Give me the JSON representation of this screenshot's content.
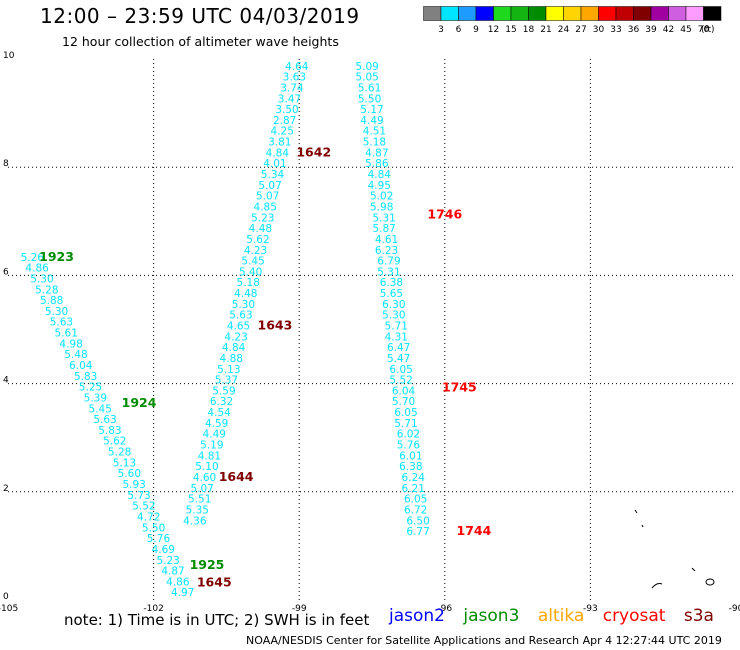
{
  "header": {
    "title": "12:00 – 23:59 UTC 04/03/2019",
    "subtitle": "12 hour collection of altimeter wave heights"
  },
  "colorbar": {
    "bins": [
      {
        "color": "#808080",
        "label": "3"
      },
      {
        "color": "#00e5ff",
        "label": "6"
      },
      {
        "color": "#1e9bff",
        "label": "9"
      },
      {
        "color": "#0000ff",
        "label": "12"
      },
      {
        "color": "#1ed81e",
        "label": "15"
      },
      {
        "color": "#13b513",
        "label": "18"
      },
      {
        "color": "#008c00",
        "label": "21"
      },
      {
        "color": "#ffff00",
        "label": "24"
      },
      {
        "color": "#ffd400",
        "label": "27"
      },
      {
        "color": "#ffa600",
        "label": "30"
      },
      {
        "color": "#ff0000",
        "label": "33"
      },
      {
        "color": "#c00000",
        "label": "36"
      },
      {
        "color": "#800000",
        "label": "39"
      },
      {
        "color": "#9f009f",
        "label": "42"
      },
      {
        "color": "#d05ee0",
        "label": "45"
      },
      {
        "color": "#ff9cff",
        "label": "70"
      },
      {
        "color": "#000000",
        "label": ""
      }
    ],
    "unit": "(ft)"
  },
  "note": "note: 1) Time is in UTC; 2) SWH is in feet",
  "legend": [
    {
      "name": "jason2",
      "color": "#0000ff"
    },
    {
      "name": "jason3",
      "color": "#008c00"
    },
    {
      "name": "altika",
      "color": "#ffa600"
    },
    {
      "name": "cryosat",
      "color": "#ff0000"
    },
    {
      "name": "s3a",
      "color": "#800000"
    }
  ],
  "footer": "NOAA/NESDIS Center for Satellite Applications and Research    Apr  4 12:27:44 UTC 2019",
  "chart_data": {
    "type": "scatter",
    "xlim": [
      -105,
      -90
    ],
    "ylim": [
      0,
      10
    ],
    "xticks": [
      "-105",
      "-102",
      "-99",
      "-96",
      "-93",
      "-90"
    ],
    "yticks": [
      "0",
      "2",
      "4",
      "6",
      "8",
      "10"
    ],
    "grid": true,
    "value_color": "#00e5ff",
    "tracks": [
      {
        "points": [
          {
            "x": -104.5,
            "y": 6.27,
            "v": "5.26"
          },
          {
            "x": -104.4,
            "y": 6.07,
            "v": "4.86"
          },
          {
            "x": -104.3,
            "y": 5.87,
            "v": "5.30"
          },
          {
            "x": -104.2,
            "y": 5.67,
            "v": "5.28"
          },
          {
            "x": -104.1,
            "y": 5.47,
            "v": "5.88"
          },
          {
            "x": -104.0,
            "y": 5.27,
            "v": "5.30"
          },
          {
            "x": -103.9,
            "y": 5.07,
            "v": "5.63"
          },
          {
            "x": -103.8,
            "y": 4.87,
            "v": "5.61"
          },
          {
            "x": -103.7,
            "y": 4.67,
            "v": "4.98"
          },
          {
            "x": -103.6,
            "y": 4.47,
            "v": "5.48"
          },
          {
            "x": -103.5,
            "y": 4.27,
            "v": "6.04"
          },
          {
            "x": -103.4,
            "y": 4.07,
            "v": "5.83"
          },
          {
            "x": -103.3,
            "y": 3.87,
            "v": "5.25"
          },
          {
            "x": -103.2,
            "y": 3.67,
            "v": "5.39"
          },
          {
            "x": -103.1,
            "y": 3.47,
            "v": "5.45"
          },
          {
            "x": -103.0,
            "y": 3.27,
            "v": "5.63"
          },
          {
            "x": -102.9,
            "y": 3.07,
            "v": "5.83"
          },
          {
            "x": -102.8,
            "y": 2.87,
            "v": "5.62"
          },
          {
            "x": -102.7,
            "y": 2.67,
            "v": "5.28"
          },
          {
            "x": -102.6,
            "y": 2.47,
            "v": "5.13"
          },
          {
            "x": -102.5,
            "y": 2.27,
            "v": "5.60"
          },
          {
            "x": -102.4,
            "y": 2.07,
            "v": "5.93"
          },
          {
            "x": -102.3,
            "y": 1.87,
            "v": "5.73"
          },
          {
            "x": -102.2,
            "y": 1.67,
            "v": "5.52"
          },
          {
            "x": -102.1,
            "y": 1.47,
            "v": "4.72"
          },
          {
            "x": -102.0,
            "y": 1.27,
            "v": "5.50"
          },
          {
            "x": -101.9,
            "y": 1.07,
            "v": "5.76"
          },
          {
            "x": -101.8,
            "y": 0.87,
            "v": "4.69"
          },
          {
            "x": -101.7,
            "y": 0.67,
            "v": "5.23"
          },
          {
            "x": -101.6,
            "y": 0.47,
            "v": "4.87"
          },
          {
            "x": -101.5,
            "y": 0.27,
            "v": "4.86"
          },
          {
            "x": -101.4,
            "y": 0.07,
            "v": "4.97"
          }
        ],
        "labels": [
          {
            "x": -104.0,
            "y": 6.27,
            "t": "1923",
            "color": "#008c00"
          },
          {
            "x": -102.3,
            "y": 3.57,
            "t": "1924",
            "color": "#008c00"
          },
          {
            "x": -100.9,
            "y": 0.57,
            "t": "1925",
            "color": "#008c00"
          }
        ]
      },
      {
        "points": [
          {
            "x": -99.05,
            "y": 9.8,
            "v": "4.64"
          },
          {
            "x": -99.1,
            "y": 9.6,
            "v": "3.63"
          },
          {
            "x": -99.15,
            "y": 9.4,
            "v": "3.74"
          },
          {
            "x": -99.2,
            "y": 9.2,
            "v": "3.47"
          },
          {
            "x": -99.25,
            "y": 9.0,
            "v": "3.50"
          },
          {
            "x": -99.3,
            "y": 8.8,
            "v": "2.87"
          },
          {
            "x": -99.35,
            "y": 8.6,
            "v": "4.25"
          },
          {
            "x": -99.4,
            "y": 8.4,
            "v": "3.81"
          },
          {
            "x": -99.45,
            "y": 8.2,
            "v": "4.84"
          },
          {
            "x": -99.5,
            "y": 8.0,
            "v": "4.01"
          },
          {
            "x": -99.55,
            "y": 7.8,
            "v": "5.34"
          },
          {
            "x": -99.6,
            "y": 7.6,
            "v": "5.07"
          },
          {
            "x": -99.65,
            "y": 7.4,
            "v": "5.07"
          },
          {
            "x": -99.7,
            "y": 7.2,
            "v": "4.85"
          },
          {
            "x": -99.75,
            "y": 7.0,
            "v": "5.23"
          },
          {
            "x": -99.8,
            "y": 6.8,
            "v": "4.48"
          },
          {
            "x": -99.85,
            "y": 6.6,
            "v": "5.62"
          },
          {
            "x": -99.9,
            "y": 6.4,
            "v": "4.23"
          },
          {
            "x": -99.95,
            "y": 6.2,
            "v": "5.45"
          },
          {
            "x": -100.0,
            "y": 6.0,
            "v": "5.40"
          },
          {
            "x": -100.05,
            "y": 5.8,
            "v": "5.18"
          },
          {
            "x": -100.1,
            "y": 5.6,
            "v": "4.48"
          },
          {
            "x": -100.15,
            "y": 5.4,
            "v": "5.30"
          },
          {
            "x": -100.2,
            "y": 5.2,
            "v": "5.63"
          },
          {
            "x": -100.25,
            "y": 5.0,
            "v": "4.65"
          },
          {
            "x": -100.3,
            "y": 4.8,
            "v": "4.23"
          },
          {
            "x": -100.35,
            "y": 4.6,
            "v": "4.84"
          },
          {
            "x": -100.4,
            "y": 4.4,
            "v": "4.88"
          },
          {
            "x": -100.45,
            "y": 4.2,
            "v": "5.13"
          },
          {
            "x": -100.5,
            "y": 4.0,
            "v": "5.37"
          },
          {
            "x": -100.55,
            "y": 3.8,
            "v": "5.59"
          },
          {
            "x": -100.6,
            "y": 3.6,
            "v": "6.32"
          },
          {
            "x": -100.65,
            "y": 3.4,
            "v": "4.54"
          },
          {
            "x": -100.7,
            "y": 3.2,
            "v": "4.59"
          },
          {
            "x": -100.75,
            "y": 3.0,
            "v": "4.49"
          },
          {
            "x": -100.8,
            "y": 2.8,
            "v": "5.19"
          },
          {
            "x": -100.85,
            "y": 2.6,
            "v": "4.81"
          },
          {
            "x": -100.9,
            "y": 2.4,
            "v": "5.10"
          },
          {
            "x": -100.95,
            "y": 2.2,
            "v": "4.60"
          },
          {
            "x": -101.0,
            "y": 2.0,
            "v": "5.07"
          },
          {
            "x": -101.05,
            "y": 1.8,
            "v": "5.51"
          },
          {
            "x": -101.1,
            "y": 1.6,
            "v": "5.35"
          },
          {
            "x": -101.15,
            "y": 1.4,
            "v": "4.36"
          }
        ],
        "labels": [
          {
            "x": -98.7,
            "y": 8.2,
            "t": "1642",
            "color": "#800000"
          },
          {
            "x": -99.5,
            "y": 5.0,
            "t": "1643",
            "color": "#800000"
          },
          {
            "x": -100.3,
            "y": 2.2,
            "t": "1644",
            "color": "#800000"
          },
          {
            "x": -100.75,
            "y": 0.25,
            "t": "1645",
            "color": "#800000"
          }
        ]
      },
      {
        "points": [
          {
            "x": -97.6,
            "y": 9.8,
            "v": "5.09"
          },
          {
            "x": -97.6,
            "y": 9.6,
            "v": "5.05"
          },
          {
            "x": -97.55,
            "y": 9.4,
            "v": "5.61"
          },
          {
            "x": -97.55,
            "y": 9.2,
            "v": "5.50"
          },
          {
            "x": -97.5,
            "y": 9.0,
            "v": "5.17"
          },
          {
            "x": -97.5,
            "y": 8.8,
            "v": "4.49"
          },
          {
            "x": -97.45,
            "y": 8.6,
            "v": "4.51"
          },
          {
            "x": -97.45,
            "y": 8.4,
            "v": "5.18"
          },
          {
            "x": -97.4,
            "y": 8.2,
            "v": "4.87"
          },
          {
            "x": -97.4,
            "y": 8.0,
            "v": "5.86"
          },
          {
            "x": -97.35,
            "y": 7.8,
            "v": "4.84"
          },
          {
            "x": -97.35,
            "y": 7.6,
            "v": "4.95"
          },
          {
            "x": -97.3,
            "y": 7.4,
            "v": "5.02"
          },
          {
            "x": -97.3,
            "y": 7.2,
            "v": "5.98"
          },
          {
            "x": -97.25,
            "y": 7.0,
            "v": "5.31"
          },
          {
            "x": -97.25,
            "y": 6.8,
            "v": "5.87"
          },
          {
            "x": -97.2,
            "y": 6.6,
            "v": "4.61"
          },
          {
            "x": -97.2,
            "y": 6.4,
            "v": "6.23"
          },
          {
            "x": -97.15,
            "y": 6.2,
            "v": "6.79"
          },
          {
            "x": -97.15,
            "y": 6.0,
            "v": "5.31"
          },
          {
            "x": -97.1,
            "y": 5.8,
            "v": "6.38"
          },
          {
            "x": -97.1,
            "y": 5.6,
            "v": "5.65"
          },
          {
            "x": -97.05,
            "y": 5.4,
            "v": "6.30"
          },
          {
            "x": -97.05,
            "y": 5.2,
            "v": "5.30"
          },
          {
            "x": -97.0,
            "y": 5.0,
            "v": "5.71"
          },
          {
            "x": -97.0,
            "y": 4.8,
            "v": "4.31"
          },
          {
            "x": -96.95,
            "y": 4.6,
            "v": "6.47"
          },
          {
            "x": -96.95,
            "y": 4.4,
            "v": "5.47"
          },
          {
            "x": -96.9,
            "y": 4.2,
            "v": "6.05"
          },
          {
            "x": -96.9,
            "y": 4.0,
            "v": "5.52"
          },
          {
            "x": -96.85,
            "y": 3.8,
            "v": "6.04"
          },
          {
            "x": -96.85,
            "y": 3.6,
            "v": "5.70"
          },
          {
            "x": -96.8,
            "y": 3.4,
            "v": "6.05"
          },
          {
            "x": -96.8,
            "y": 3.2,
            "v": "5.71"
          },
          {
            "x": -96.75,
            "y": 3.0,
            "v": "6.02"
          },
          {
            "x": -96.75,
            "y": 2.8,
            "v": "5.76"
          },
          {
            "x": -96.7,
            "y": 2.6,
            "v": "6.01"
          },
          {
            "x": -96.7,
            "y": 2.4,
            "v": "6.38"
          },
          {
            "x": -96.65,
            "y": 2.2,
            "v": "6.24"
          },
          {
            "x": -96.65,
            "y": 2.0,
            "v": "6.21"
          },
          {
            "x": -96.6,
            "y": 1.8,
            "v": "6.05"
          },
          {
            "x": -96.6,
            "y": 1.6,
            "v": "6.72"
          },
          {
            "x": -96.55,
            "y": 1.4,
            "v": "6.50"
          },
          {
            "x": -96.55,
            "y": 1.2,
            "v": "6.77"
          }
        ],
        "labels": [
          {
            "x": -96.0,
            "y": 7.05,
            "t": "1746",
            "color": "#ff0000"
          },
          {
            "x": -95.7,
            "y": 3.85,
            "t": "1745",
            "color": "#ff0000"
          },
          {
            "x": -95.4,
            "y": 1.2,
            "t": "1744",
            "color": "#ff0000"
          }
        ]
      }
    ]
  }
}
